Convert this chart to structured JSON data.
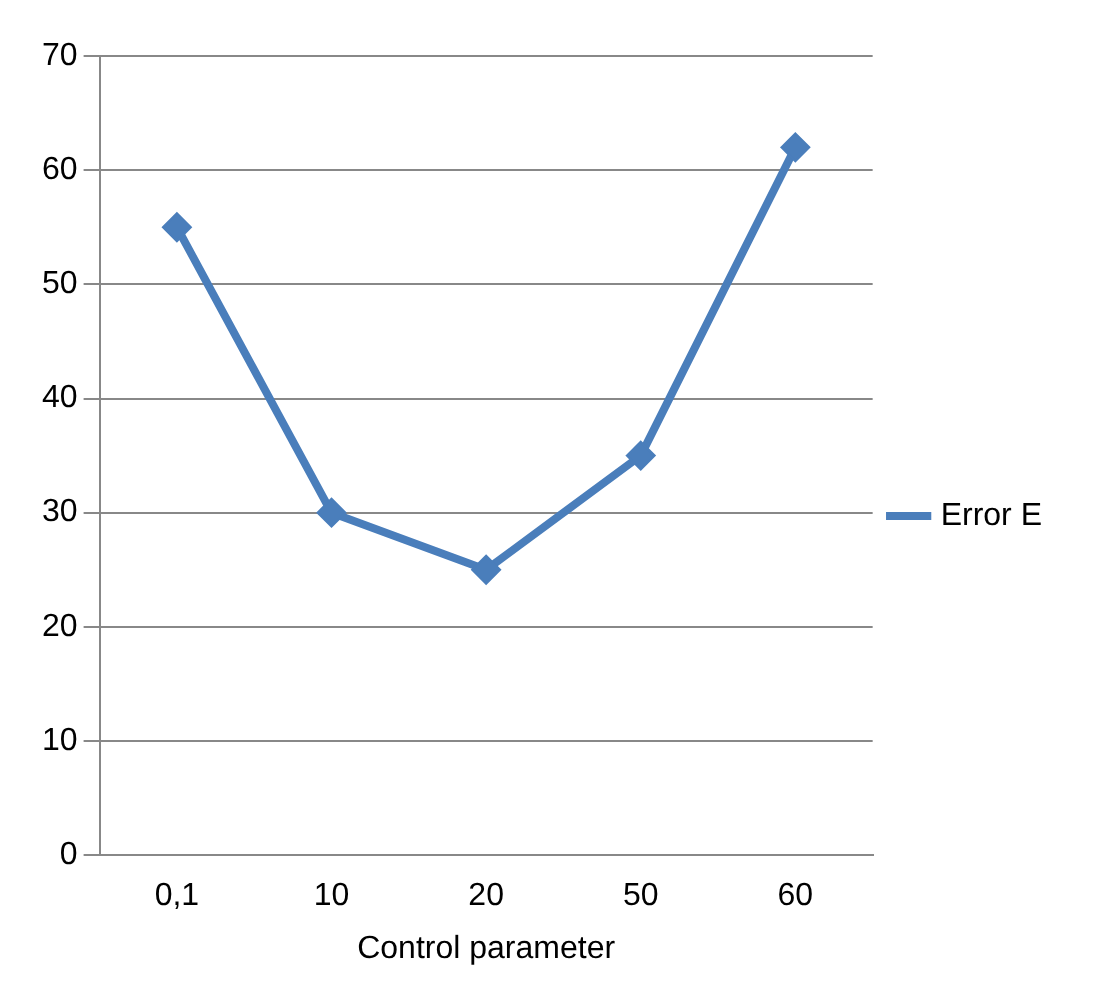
{
  "chart_data": {
    "type": "line",
    "xlabel": "Control parameter",
    "categories": [
      "0,1",
      "10",
      "20",
      "50",
      "60"
    ],
    "series": [
      {
        "name": "Error E",
        "color": "#4a7ebb",
        "values": [
          55,
          30,
          25,
          35,
          62
        ]
      }
    ],
    "ylim": [
      0,
      70
    ],
    "yticks": [
      0,
      10,
      20,
      30,
      40,
      50,
      60,
      70
    ],
    "grid": "y",
    "legend": "right",
    "marker": "diamond",
    "line_style": "solid"
  }
}
